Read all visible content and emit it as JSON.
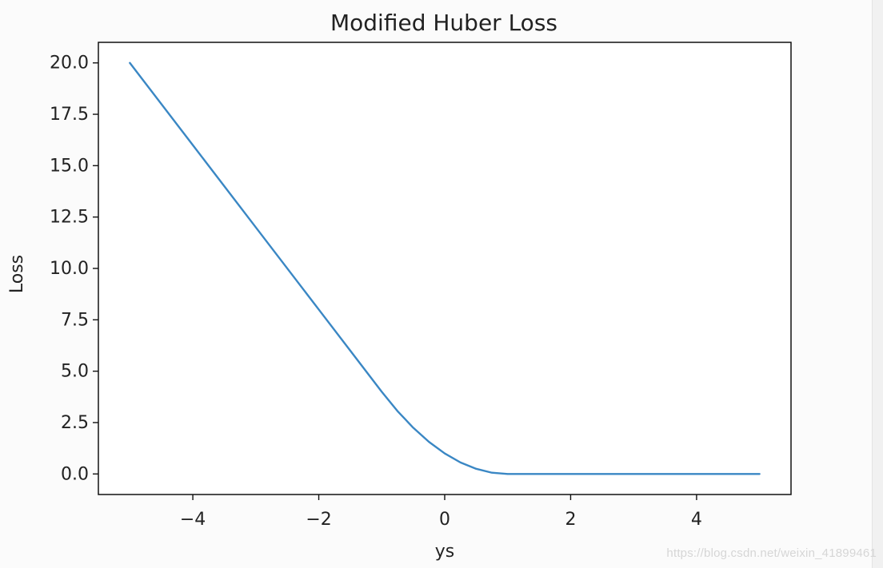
{
  "chart_data": {
    "type": "line",
    "title": "Modified Huber Loss",
    "xlabel": "ys",
    "ylabel": "Loss",
    "xlim": [
      -5.5,
      5.5
    ],
    "ylim": [
      -1.0,
      21.0
    ],
    "xticks": [
      -4,
      -2,
      0,
      2,
      4
    ],
    "xtick_labels": [
      "−4",
      "−2",
      "0",
      "2",
      "4"
    ],
    "yticks": [
      0.0,
      2.5,
      5.0,
      7.5,
      10.0,
      12.5,
      15.0,
      17.5,
      20.0
    ],
    "ytick_labels": [
      "0.0",
      "2.5",
      "5.0",
      "7.5",
      "10.0",
      "12.5",
      "15.0",
      "17.5",
      "20.0"
    ],
    "grid": false,
    "line_color": "#3a87c4",
    "series": [
      {
        "x": [
          -5.0,
          -4.0,
          -3.0,
          -2.0,
          -1.5,
          -1.0,
          -0.75,
          -0.5,
          -0.25,
          0.0,
          0.25,
          0.5,
          0.75,
          1.0,
          2.0,
          3.0,
          4.0,
          5.0
        ],
        "values": [
          20.0,
          16.0,
          12.0,
          8.0,
          6.0,
          4.0,
          3.06,
          2.25,
          1.56,
          1.0,
          0.56,
          0.25,
          0.06,
          0.0,
          0.0,
          0.0,
          0.0,
          0.0
        ]
      }
    ]
  },
  "watermark": "https://blog.csdn.net/weixin_41899461"
}
